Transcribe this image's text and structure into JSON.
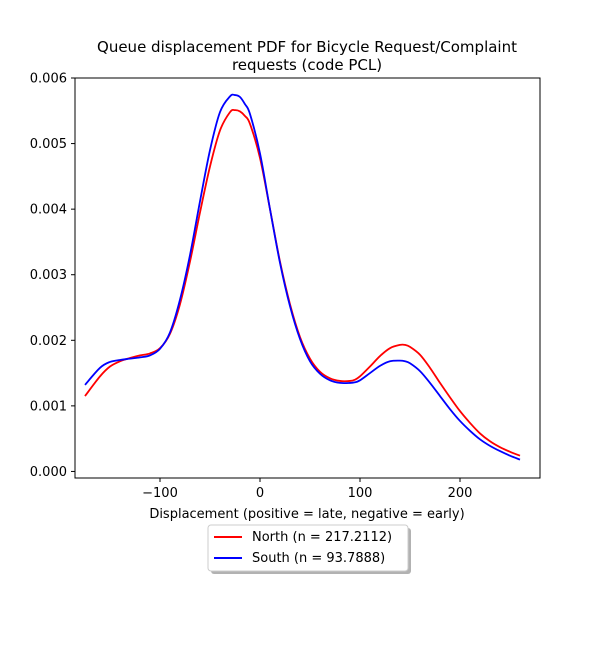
{
  "chart_data": {
    "type": "line",
    "title": "Queue displacement PDF for Bicycle Request/Complaint requests (code PCL)",
    "title_lines": [
      "Queue displacement PDF for Bicycle Request/Complaint",
      "requests (code PCL)"
    ],
    "xlabel": "Displacement (positive = late, negative = early)",
    "ylabel": "",
    "xlim": [
      -185,
      280
    ],
    "ylim": [
      -0.0001,
      0.006
    ],
    "xticks": [
      -100,
      0,
      100,
      200
    ],
    "xtick_labels": [
      "−100",
      "0",
      "100",
      "200"
    ],
    "yticks": [
      0.0,
      0.001,
      0.002,
      0.003,
      0.004,
      0.005,
      0.006
    ],
    "ytick_labels": [
      "0.000",
      "0.001",
      "0.002",
      "0.003",
      "0.004",
      "0.005",
      "0.006"
    ],
    "grid": false,
    "legend_position": "below",
    "series": [
      {
        "name": "North (n = 217.2112)",
        "color": "#ff0000",
        "x": [
          -175,
          -160,
          -150,
          -140,
          -130,
          -120,
          -110,
          -100,
          -90,
          -80,
          -70,
          -60,
          -50,
          -40,
          -30,
          -25,
          -20,
          -15,
          -10,
          0,
          10,
          20,
          30,
          40,
          50,
          60,
          70,
          80,
          90,
          95,
          100,
          110,
          120,
          130,
          140,
          145,
          150,
          160,
          170,
          180,
          190,
          200,
          210,
          220,
          230,
          240,
          250,
          260
        ],
        "y": [
          0.00115,
          0.00145,
          0.0016,
          0.00168,
          0.00173,
          0.00177,
          0.0018,
          0.00188,
          0.0021,
          0.00255,
          0.0032,
          0.00395,
          0.00465,
          0.0052,
          0.00548,
          0.00551,
          0.00549,
          0.00542,
          0.0053,
          0.00478,
          0.004,
          0.0032,
          0.00255,
          0.00205,
          0.00172,
          0.00152,
          0.00142,
          0.00138,
          0.00138,
          0.0014,
          0.00145,
          0.0016,
          0.00176,
          0.00188,
          0.00193,
          0.00193,
          0.0019,
          0.00178,
          0.00158,
          0.00135,
          0.00113,
          0.00092,
          0.00074,
          0.00058,
          0.00046,
          0.00037,
          0.0003,
          0.00024
        ]
      },
      {
        "name": "South (n = 93.7888)",
        "color": "#0000ff",
        "x": [
          -175,
          -160,
          -150,
          -140,
          -130,
          -120,
          -110,
          -100,
          -90,
          -80,
          -70,
          -60,
          -50,
          -40,
          -30,
          -25,
          -20,
          -15,
          -10,
          0,
          10,
          20,
          30,
          40,
          50,
          60,
          70,
          80,
          90,
          95,
          100,
          110,
          120,
          130,
          140,
          145,
          150,
          160,
          170,
          180,
          190,
          200,
          210,
          220,
          230,
          240,
          250,
          260
        ],
        "y": [
          0.00132,
          0.00158,
          0.00167,
          0.0017,
          0.00172,
          0.00174,
          0.00177,
          0.00187,
          0.00212,
          0.00262,
          0.0033,
          0.00412,
          0.0049,
          0.00548,
          0.00572,
          0.00574,
          0.00571,
          0.0056,
          0.00545,
          0.00485,
          0.004,
          0.00318,
          0.00252,
          0.00202,
          0.00168,
          0.00149,
          0.00139,
          0.00135,
          0.00135,
          0.00136,
          0.00139,
          0.0015,
          0.00161,
          0.00168,
          0.00169,
          0.00168,
          0.00165,
          0.00153,
          0.00135,
          0.00115,
          0.00095,
          0.00077,
          0.00062,
          0.00049,
          0.00039,
          0.00031,
          0.00024,
          0.00018
        ]
      }
    ]
  }
}
